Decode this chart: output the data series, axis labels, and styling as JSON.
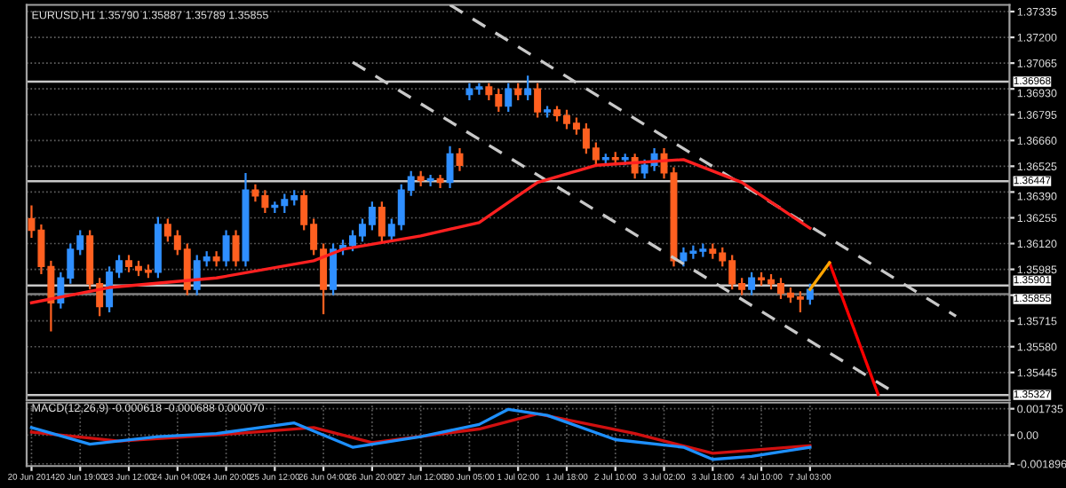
{
  "chart_data": [
    {
      "type": "candlestick",
      "title": "EURUSD,H1 1.35790 1.35887 1.35789 1.35855",
      "categories": [
        null,
        null,
        null,
        null,
        null,
        null,
        null,
        null,
        null,
        null,
        null,
        null,
        null,
        null,
        null,
        null,
        null,
        null,
        null,
        null,
        null,
        null,
        null,
        null,
        null,
        null,
        null,
        null,
        null,
        null,
        null,
        null,
        null,
        null,
        null,
        null,
        null,
        null,
        null,
        null,
        null,
        null,
        null,
        null,
        null,
        null,
        null,
        null,
        null,
        null,
        null,
        null,
        null,
        null,
        null,
        null,
        null,
        null,
        null,
        null,
        null,
        null,
        null,
        null,
        null,
        null,
        null,
        null,
        null,
        null,
        null,
        null,
        null,
        null,
        null,
        null,
        null,
        null,
        null,
        null,
        null,
        null,
        null,
        null,
        null,
        null,
        null,
        null,
        null,
        null,
        null,
        null,
        null,
        null,
        null,
        null,
        null,
        null,
        null,
        null,
        null
      ],
      "ohlc": [
        [
          1.3625,
          1.3632,
          1.3615,
          1.3619
        ],
        [
          1.3619,
          1.3622,
          1.3596,
          1.36
        ],
        [
          1.36,
          1.3603,
          1.3566,
          1.3581
        ],
        [
          1.3581,
          1.3597,
          1.3578,
          1.3594
        ],
        [
          1.3594,
          1.3612,
          1.3591,
          1.3609
        ],
        [
          1.3609,
          1.3619,
          1.3606,
          1.3616
        ],
        [
          1.3616,
          1.3619,
          1.3588,
          1.3591
        ],
        [
          1.3591,
          1.3594,
          1.3574,
          1.3579
        ],
        [
          1.3579,
          1.36,
          1.3576,
          1.3597
        ],
        [
          1.3597,
          1.3606,
          1.3594,
          1.3603
        ],
        [
          1.3603,
          1.3606,
          1.3597,
          1.36
        ],
        [
          1.36,
          1.3603,
          1.3595,
          1.3598
        ],
        [
          1.3598,
          1.3601,
          1.3594,
          1.3597
        ],
        [
          1.3597,
          1.3626,
          1.3594,
          1.3622
        ],
        [
          1.3622,
          1.3625,
          1.3613,
          1.3616
        ],
        [
          1.3616,
          1.3619,
          1.3606,
          1.3609
        ],
        [
          1.3609,
          1.3612,
          1.3585,
          1.3588
        ],
        [
          1.3588,
          1.3606,
          1.3585,
          1.3603
        ],
        [
          1.3603,
          1.3608,
          1.36,
          1.3605
        ],
        [
          1.3605,
          1.3608,
          1.36,
          1.3603
        ],
        [
          1.3603,
          1.3619,
          1.36,
          1.3616
        ],
        [
          1.3616,
          1.3619,
          1.36,
          1.3603
        ],
        [
          1.3603,
          1.3649,
          1.36,
          1.364
        ],
        [
          1.364,
          1.3643,
          1.3634,
          1.3637
        ],
        [
          1.3637,
          1.364,
          1.3628,
          1.3631
        ],
        [
          1.3631,
          1.3634,
          1.3628,
          1.3632
        ],
        [
          1.3632,
          1.3638,
          1.3628,
          1.3635
        ],
        [
          1.3635,
          1.364,
          1.3632,
          1.3637
        ],
        [
          1.3637,
          1.364,
          1.3619,
          1.3622
        ],
        [
          1.3622,
          1.3625,
          1.3606,
          1.3609
        ],
        [
          1.3609,
          1.3612,
          1.3575,
          1.3588
        ],
        [
          1.3588,
          1.3612,
          1.3585,
          1.3609
        ],
        [
          1.3609,
          1.3614,
          1.3606,
          1.3611
        ],
        [
          1.3611,
          1.3619,
          1.3608,
          1.3616
        ],
        [
          1.3616,
          1.3625,
          1.3613,
          1.3622
        ],
        [
          1.3622,
          1.3634,
          1.3619,
          1.3631
        ],
        [
          1.3631,
          1.3634,
          1.3613,
          1.3616
        ],
        [
          1.3616,
          1.3625,
          1.3613,
          1.3622
        ],
        [
          1.3622,
          1.3643,
          1.3619,
          1.364
        ],
        [
          1.364,
          1.365,
          1.3637,
          1.3647
        ],
        [
          1.3647,
          1.365,
          1.3642,
          1.3645
        ],
        [
          1.3645,
          1.3648,
          1.3642,
          1.3646
        ],
        [
          1.3646,
          1.3648,
          1.3641,
          1.3644
        ],
        [
          1.3644,
          1.3663,
          1.3641,
          1.3659
        ],
        [
          1.3659,
          1.3662,
          1.365,
          1.3653
        ],
        [
          1.369,
          1.3696,
          1.3687,
          1.3693
        ],
        [
          1.3693,
          1.3696,
          1.369,
          1.3694
        ],
        [
          1.3694,
          1.3696,
          1.3687,
          1.369
        ],
        [
          1.369,
          1.3693,
          1.3681,
          1.3684
        ],
        [
          1.3684,
          1.3696,
          1.3681,
          1.3693
        ],
        [
          1.3693,
          1.3696,
          1.3687,
          1.369
        ],
        [
          1.369,
          1.37,
          1.3687,
          1.3693
        ],
        [
          1.3693,
          1.3696,
          1.3678,
          1.3681
        ],
        [
          1.3681,
          1.3684,
          1.3678,
          1.3682
        ],
        [
          1.3682,
          1.3684,
          1.3676,
          1.3679
        ],
        [
          1.3679,
          1.3682,
          1.3672,
          1.3675
        ],
        [
          1.3675,
          1.3678,
          1.3669,
          1.3672
        ],
        [
          1.3672,
          1.3675,
          1.3659,
          1.3662
        ],
        [
          1.3662,
          1.3665,
          1.3653,
          1.3656
        ],
        [
          1.3656,
          1.3659,
          1.3653,
          1.3657
        ],
        [
          1.3657,
          1.366,
          1.3653,
          1.3656
        ],
        [
          1.3656,
          1.3659,
          1.3653,
          1.3657
        ],
        [
          1.3657,
          1.3659,
          1.3646,
          1.3649
        ],
        [
          1.3649,
          1.3656,
          1.3646,
          1.3653
        ],
        [
          1.3653,
          1.3662,
          1.365,
          1.3659
        ],
        [
          1.3659,
          1.3662,
          1.3646,
          1.3649
        ],
        [
          1.3649,
          1.3652,
          1.36,
          1.3603
        ],
        [
          1.3603,
          1.361,
          1.36,
          1.3607
        ],
        [
          1.3607,
          1.3611,
          1.3604,
          1.3608
        ],
        [
          1.3608,
          1.3612,
          1.3605,
          1.3609
        ],
        [
          1.3609,
          1.3612,
          1.3604,
          1.3607
        ],
        [
          1.3607,
          1.361,
          1.36,
          1.3603
        ],
        [
          1.3603,
          1.3606,
          1.3588,
          1.3591
        ],
        [
          1.3591,
          1.3594,
          1.3585,
          1.3588
        ],
        [
          1.3588,
          1.3597,
          1.3585,
          1.3594
        ],
        [
          1.3594,
          1.3597,
          1.359,
          1.3593
        ],
        [
          1.3593,
          1.3596,
          1.3588,
          1.3591
        ],
        [
          1.3591,
          1.3594,
          1.3583,
          1.3586
        ],
        [
          1.3586,
          1.3589,
          1.3581,
          1.3584
        ],
        [
          1.3584,
          1.3587,
          1.3576,
          1.3583
        ],
        [
          1.3583,
          1.3591,
          1.358,
          1.3588
        ],
        null,
        null,
        null,
        null,
        null,
        null,
        null,
        null,
        null,
        null,
        null,
        null,
        null,
        null,
        null,
        null,
        null,
        null,
        null,
        null
      ],
      "series": [
        {
          "type": "line",
          "color": "#ff2020",
          "line_style": "solid",
          "values": [
            1.3581,
            null,
            null,
            null,
            null,
            null,
            null,
            null,
            1.3589,
            null,
            null,
            null,
            null,
            null,
            null,
            null,
            null,
            null,
            null,
            1.3594,
            null,
            null,
            null,
            null,
            null,
            null,
            null,
            null,
            null,
            1.3603,
            null,
            null,
            1.3609,
            null,
            null,
            null,
            null,
            null,
            null,
            null,
            1.3616,
            null,
            null,
            null,
            null,
            null,
            1.3623,
            null,
            null,
            null,
            1.3637,
            null,
            1.3644,
            null,
            null,
            null,
            null,
            null,
            1.3653,
            null,
            null,
            null,
            null,
            null,
            null,
            null,
            null,
            1.3656,
            null,
            null,
            null,
            null,
            null,
            1.3644,
            null,
            null,
            null,
            null,
            null,
            null,
            1.362,
            null,
            null,
            null,
            null,
            null,
            null,
            null,
            null,
            null,
            null,
            null,
            null,
            null,
            null,
            null,
            null,
            null,
            null,
            null,
            null
          ]
        },
        {
          "type": "line",
          "color": "#c8c8c8",
          "line_style": "dashed",
          "values": [
            null,
            null,
            null,
            null,
            null,
            null,
            null,
            null,
            null,
            null,
            null,
            null,
            null,
            null,
            null,
            null,
            null,
            null,
            null,
            null,
            null,
            null,
            null,
            null,
            null,
            null,
            null,
            null,
            null,
            null,
            null,
            null,
            null,
            null,
            null,
            null,
            null,
            null,
            null,
            null,
            null,
            null,
            null,
            1.3737,
            null,
            null,
            null,
            null,
            null,
            null,
            null,
            null,
            null,
            null,
            null,
            null,
            null,
            null,
            null,
            null,
            null,
            null,
            null,
            null,
            null,
            null,
            null,
            null,
            null,
            null,
            null,
            null,
            null,
            null,
            null,
            null,
            null,
            null,
            null,
            null,
            null,
            null,
            null,
            null,
            null,
            null,
            null,
            null,
            null,
            null,
            null,
            null,
            null,
            null,
            null,
            1.3574,
            null,
            null,
            null,
            null,
            null
          ]
        },
        {
          "type": "line",
          "color": "#c8c8c8",
          "line_style": "dashed",
          "values": [
            null,
            null,
            null,
            null,
            null,
            null,
            null,
            null,
            null,
            null,
            null,
            null,
            null,
            null,
            null,
            null,
            null,
            null,
            null,
            null,
            null,
            null,
            null,
            null,
            null,
            null,
            null,
            null,
            null,
            null,
            null,
            null,
            null,
            1.3707,
            null,
            null,
            null,
            null,
            null,
            null,
            null,
            null,
            null,
            null,
            null,
            null,
            null,
            null,
            null,
            null,
            null,
            null,
            null,
            null,
            null,
            null,
            null,
            null,
            null,
            null,
            null,
            null,
            null,
            null,
            null,
            null,
            null,
            null,
            null,
            null,
            null,
            null,
            null,
            null,
            null,
            null,
            null,
            null,
            null,
            null,
            null,
            null,
            null,
            null,
            null,
            null,
            null,
            null,
            null,
            1.3533,
            null,
            null,
            null,
            null,
            null,
            null,
            null,
            null,
            null,
            null,
            null
          ]
        },
        {
          "type": "line",
          "color": "#ffa500",
          "line_style": "solid",
          "values": [
            null,
            null,
            null,
            null,
            null,
            null,
            null,
            null,
            null,
            null,
            null,
            null,
            null,
            null,
            null,
            null,
            null,
            null,
            null,
            null,
            null,
            null,
            null,
            null,
            null,
            null,
            null,
            null,
            null,
            null,
            null,
            null,
            null,
            null,
            null,
            null,
            null,
            null,
            null,
            null,
            null,
            null,
            null,
            null,
            null,
            null,
            null,
            null,
            null,
            null,
            null,
            null,
            null,
            null,
            null,
            null,
            null,
            null,
            null,
            null,
            null,
            null,
            null,
            null,
            null,
            null,
            null,
            null,
            null,
            null,
            null,
            null,
            null,
            null,
            null,
            null,
            null,
            null,
            null,
            null,
            1.3588,
            null,
            1.3602,
            null,
            null,
            null,
            null,
            null,
            null,
            null,
            null,
            null,
            null,
            null,
            null,
            null,
            null,
            null,
            null,
            null,
            null
          ]
        },
        {
          "type": "line",
          "color": "#ff0000",
          "line_style": "solid",
          "values": [
            null,
            null,
            null,
            null,
            null,
            null,
            null,
            null,
            null,
            null,
            null,
            null,
            null,
            null,
            null,
            null,
            null,
            null,
            null,
            null,
            null,
            null,
            null,
            null,
            null,
            null,
            null,
            null,
            null,
            null,
            null,
            null,
            null,
            null,
            null,
            null,
            null,
            null,
            null,
            null,
            null,
            null,
            null,
            null,
            null,
            null,
            null,
            null,
            null,
            null,
            null,
            null,
            null,
            null,
            null,
            null,
            null,
            null,
            null,
            null,
            null,
            null,
            null,
            null,
            null,
            null,
            null,
            null,
            null,
            null,
            null,
            null,
            null,
            null,
            null,
            null,
            null,
            null,
            null,
            null,
            null,
            null,
            1.3602,
            null,
            null,
            null,
            null,
            1.3533,
            null,
            null,
            null,
            null,
            null,
            null,
            null,
            null,
            null,
            null,
            null,
            null,
            null
          ]
        }
      ],
      "ref_lines": [
        {
          "axis": "y",
          "value": 1.36968,
          "label": "1.36968",
          "color": "#c8c8c8"
        },
        {
          "axis": "y",
          "value": 1.36447,
          "label": "1.36447",
          "color": "#c8c8c8"
        },
        {
          "axis": "y",
          "value": 1.35901,
          "label": "1.35901",
          "color": "#c8c8c8"
        },
        {
          "axis": "y",
          "value": 1.35855,
          "label": "1.35855",
          "color": "#808080"
        },
        {
          "axis": "y",
          "value": 1.35327,
          "label": "1.35327",
          "color": "#c8c8c8"
        }
      ],
      "ylim": [
        1.353,
        1.3737
      ],
      "yticks": [
        1.37335,
        {
          "value": 1.372,
          "label": "1.37200"
        },
        1.37065,
        {
          "value": 1.3693,
          "label": "1.36930"
        },
        1.36795,
        {
          "value": 1.3666,
          "label": "1.36660"
        },
        1.36525,
        {
          "value": 1.3639,
          "label": "1.36390"
        },
        1.36255,
        {
          "value": 1.3612,
          "label": "1.36120"
        },
        1.35985,
        {
          "value": 1.3585,
          "label": null
        },
        1.35715,
        {
          "value": 1.3558,
          "label": "1.35580"
        },
        1.35445
      ],
      "grid": true,
      "tick_labels": "y"
    },
    {
      "type": "line",
      "title": "MACD(12,26,9) -0.000618 -0.000688 0.000070",
      "categories": [
        "20 Jun 2014",
        null,
        null,
        null,
        null,
        "20 Jun 19:00",
        null,
        null,
        null,
        null,
        "23 Jun 12:00",
        null,
        null,
        null,
        null,
        "24 Jun 04:00",
        null,
        null,
        null,
        null,
        "24 Jun 20:00",
        null,
        null,
        null,
        null,
        "25 Jun 12:00",
        null,
        null,
        null,
        null,
        "26 Jun 04:00",
        null,
        null,
        null,
        null,
        "26 Jun 20:00",
        null,
        null,
        null,
        null,
        "27 Jun 12:00",
        null,
        null,
        null,
        null,
        "30 Jun 05:00",
        null,
        null,
        null,
        null,
        "1 Jul 02:00",
        null,
        null,
        null,
        null,
        "1 Jul 18:00",
        null,
        null,
        null,
        null,
        "2 Jul 10:00",
        null,
        null,
        null,
        null,
        "3 Jul 02:00",
        null,
        null,
        null,
        null,
        "3 Jul 18:00",
        null,
        null,
        null,
        null,
        "4 Jul 10:00",
        null,
        null,
        null,
        null,
        "7 Jul 03:00",
        null,
        null,
        null,
        null,
        null,
        null,
        null,
        null,
        null,
        null,
        null,
        null,
        null,
        null,
        null,
        null,
        null,
        null,
        null,
        null
      ],
      "series": [
        {
          "color": "#1e90ff",
          "values": [
            0.0005,
            null,
            null,
            null,
            null,
            null,
            -0.0006,
            null,
            null,
            null,
            null,
            null,
            null,
            -0.0001,
            null,
            null,
            null,
            null,
            null,
            0.0001,
            null,
            null,
            null,
            null,
            null,
            null,
            null,
            0.0008,
            null,
            null,
            null,
            null,
            null,
            -0.0008,
            null,
            null,
            null,
            null,
            null,
            null,
            -0.0001,
            null,
            null,
            null,
            null,
            null,
            0.0007,
            null,
            null,
            0.0017,
            null,
            null,
            null,
            0.0013,
            null,
            null,
            null,
            null,
            null,
            null,
            -0.0003,
            null,
            null,
            null,
            null,
            null,
            null,
            -0.0008,
            null,
            null,
            -0.0016,
            null,
            null,
            null,
            -0.0014,
            null,
            null,
            null,
            null,
            null,
            -0.0008,
            null,
            null,
            null,
            null,
            null,
            null,
            null,
            null,
            null,
            null,
            null,
            null,
            null,
            null,
            null,
            null,
            null,
            null,
            null,
            null
          ]
        },
        {
          "color": "#d01010",
          "values": [
            0.0002,
            null,
            null,
            null,
            null,
            null,
            null,
            null,
            null,
            -0.0004,
            null,
            null,
            null,
            null,
            null,
            null,
            null,
            null,
            null,
            null,
            null,
            0.0001,
            null,
            null,
            null,
            null,
            null,
            null,
            null,
            0.0005,
            null,
            null,
            null,
            null,
            null,
            -0.0005,
            null,
            null,
            null,
            null,
            null,
            null,
            null,
            null,
            null,
            null,
            0.0004,
            null,
            null,
            null,
            null,
            null,
            0.0014,
            null,
            null,
            null,
            null,
            null,
            null,
            null,
            null,
            null,
            0.0001,
            null,
            null,
            null,
            null,
            null,
            null,
            null,
            -0.0012,
            null,
            null,
            null,
            null,
            null,
            null,
            null,
            null,
            null,
            -0.0007,
            null,
            null,
            null,
            null,
            null,
            null,
            null,
            null,
            null,
            null,
            null,
            null,
            null,
            null,
            null,
            null,
            null,
            null,
            null,
            null
          ]
        }
      ],
      "ylim": [
        -0.00204,
        0.00214
      ],
      "yticks": [
        0.001735,
        {
          "value": 0,
          "label": "0.00"
        },
        -0.001896
      ],
      "grid": true
    }
  ]
}
